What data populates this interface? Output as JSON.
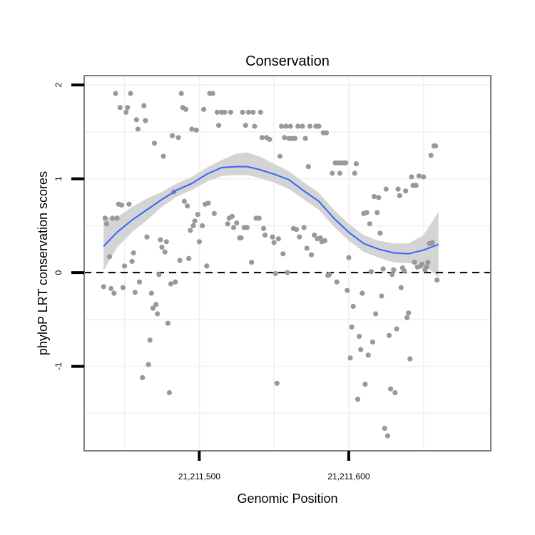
{
  "chart_data": {
    "type": "scatter",
    "title": "Conservation",
    "xlabel": "Genomic Position",
    "ylabel": "phyloP LRT conservation scores",
    "xlim": [
      21211423,
      21211695
    ],
    "ylim": [
      -1.9,
      2.1
    ],
    "x_ticks": [
      {
        "value": 21211500,
        "label": "21,211,500"
      },
      {
        "value": 21211600,
        "label": "21,211,600"
      }
    ],
    "y_ticks": [
      {
        "value": -1,
        "label": "-1"
      },
      {
        "value": 0,
        "label": "0"
      },
      {
        "value": 1,
        "label": "1"
      },
      {
        "value": 2,
        "label": "2"
      }
    ],
    "reference_line": {
      "y": 0,
      "style": "dashed"
    },
    "points": [
      [
        21211436,
        -0.15
      ],
      [
        21211437,
        0.58
      ],
      [
        21211438,
        0.52
      ],
      [
        21211440,
        0.17
      ],
      [
        21211441,
        -0.17
      ],
      [
        21211442,
        0.58
      ],
      [
        21211443,
        -0.22
      ],
      [
        21211444,
        1.91
      ],
      [
        21211445,
        0.58
      ],
      [
        21211446,
        0.73
      ],
      [
        21211447,
        1.76
      ],
      [
        21211448,
        0.72
      ],
      [
        21211449,
        -0.16
      ],
      [
        21211450,
        0.07
      ],
      [
        21211451,
        1.71
      ],
      [
        21211452,
        1.76
      ],
      [
        21211453,
        0.73
      ],
      [
        21211454,
        1.91
      ],
      [
        21211455,
        0.12
      ],
      [
        21211456,
        0.21
      ],
      [
        21211457,
        -0.21
      ],
      [
        21211458,
        1.63
      ],
      [
        21211459,
        1.53
      ],
      [
        21211460,
        -0.1
      ],
      [
        21211462,
        -1.12
      ],
      [
        21211463,
        1.78
      ],
      [
        21211464,
        1.62
      ],
      [
        21211465,
        0.38
      ],
      [
        21211466,
        -0.98
      ],
      [
        21211467,
        -0.72
      ],
      [
        21211468,
        -0.22
      ],
      [
        21211469,
        -0.38
      ],
      [
        21211470,
        1.38
      ],
      [
        21211471,
        -0.34
      ],
      [
        21211472,
        -0.44
      ],
      [
        21211473,
        -0.02
      ],
      [
        21211474,
        0.35
      ],
      [
        21211475,
        0.27
      ],
      [
        21211476,
        1.24
      ],
      [
        21211477,
        0.22
      ],
      [
        21211478,
        0.33
      ],
      [
        21211479,
        -0.54
      ],
      [
        21211480,
        -1.28
      ],
      [
        21211481,
        -0.12
      ],
      [
        21211482,
        1.46
      ],
      [
        21211483,
        0.86
      ],
      [
        21211484,
        -0.1
      ],
      [
        21211486,
        1.44
      ],
      [
        21211487,
        0.13
      ],
      [
        21211488,
        1.91
      ],
      [
        21211489,
        1.76
      ],
      [
        21211490,
        0.76
      ],
      [
        21211491,
        1.74
      ],
      [
        21211492,
        0.71
      ],
      [
        21211493,
        0.15
      ],
      [
        21211494,
        0.45
      ],
      [
        21211495,
        1.53
      ],
      [
        21211496,
        0.5
      ],
      [
        21211497,
        0.55
      ],
      [
        21211498,
        1.52
      ],
      [
        21211499,
        0.62
      ],
      [
        21211500,
        0.33
      ],
      [
        21211502,
        0.5
      ],
      [
        21211503,
        1.74
      ],
      [
        21211504,
        0.73
      ],
      [
        21211505,
        0.07
      ],
      [
        21211506,
        0.74
      ],
      [
        21211507,
        1.91
      ],
      [
        21211509,
        1.91
      ],
      [
        21211510,
        0.63
      ],
      [
        21211512,
        1.71
      ],
      [
        21211513,
        1.57
      ],
      [
        21211515,
        1.71
      ],
      [
        21211517,
        1.71
      ],
      [
        21211519,
        0.52
      ],
      [
        21211520,
        0.58
      ],
      [
        21211521,
        1.71
      ],
      [
        21211522,
        0.6
      ],
      [
        21211523,
        0.48
      ],
      [
        21211525,
        0.53
      ],
      [
        21211527,
        0.37
      ],
      [
        21211528,
        0.37
      ],
      [
        21211529,
        1.71
      ],
      [
        21211530,
        0.48
      ],
      [
        21211531,
        1.57
      ],
      [
        21211532,
        0.48
      ],
      [
        21211533,
        1.71
      ],
      [
        21211535,
        0.11
      ],
      [
        21211536,
        1.71
      ],
      [
        21211537,
        1.56
      ],
      [
        21211538,
        0.58
      ],
      [
        21211540,
        0.58
      ],
      [
        21211541,
        1.71
      ],
      [
        21211542,
        1.44
      ],
      [
        21211543,
        0.47
      ],
      [
        21211544,
        0.4
      ],
      [
        21211545,
        1.44
      ],
      [
        21211547,
        1.42
      ],
      [
        21211549,
        0.38
      ],
      [
        21211550,
        0.32
      ],
      [
        21211551,
        -0.01
      ],
      [
        21211552,
        -1.18
      ],
      [
        21211553,
        0.36
      ],
      [
        21211554,
        1.24
      ],
      [
        21211555,
        1.56
      ],
      [
        21211556,
        0.2
      ],
      [
        21211557,
        1.44
      ],
      [
        21211558,
        1.56
      ],
      [
        21211559,
        0.0
      ],
      [
        21211560,
        1.43
      ],
      [
        21211561,
        1.56
      ],
      [
        21211562,
        1.43
      ],
      [
        21211563,
        0.47
      ],
      [
        21211564,
        1.43
      ],
      [
        21211565,
        0.46
      ],
      [
        21211566,
        1.56
      ],
      [
        21211567,
        0.38
      ],
      [
        21211569,
        1.56
      ],
      [
        21211570,
        0.48
      ],
      [
        21211571,
        1.43
      ],
      [
        21211572,
        0.26
      ],
      [
        21211573,
        1.13
      ],
      [
        21211574,
        1.56
      ],
      [
        21211575,
        0.19
      ],
      [
        21211577,
        0.4
      ],
      [
        21211578,
        1.56
      ],
      [
        21211579,
        0.36
      ],
      [
        21211580,
        1.56
      ],
      [
        21211581,
        0.37
      ],
      [
        21211582,
        0.33
      ],
      [
        21211583,
        1.49
      ],
      [
        21211584,
        0.34
      ],
      [
        21211585,
        1.49
      ],
      [
        21211586,
        -0.03
      ],
      [
        21211587,
        -0.02
      ],
      [
        21211589,
        1.06
      ],
      [
        21211591,
        1.17
      ],
      [
        21211592,
        -0.1
      ],
      [
        21211593,
        1.17
      ],
      [
        21211594,
        1.06
      ],
      [
        21211595,
        1.17
      ],
      [
        21211597,
        1.17
      ],
      [
        21211598,
        1.17
      ],
      [
        21211599,
        -0.19
      ],
      [
        21211600,
        0.16
      ],
      [
        21211601,
        -0.91
      ],
      [
        21211602,
        -0.58
      ],
      [
        21211603,
        -0.36
      ],
      [
        21211604,
        1.06
      ],
      [
        21211605,
        1.16
      ],
      [
        21211606,
        -1.35
      ],
      [
        21211607,
        -0.68
      ],
      [
        21211608,
        -0.82
      ],
      [
        21211609,
        -0.22
      ],
      [
        21211610,
        0.63
      ],
      [
        21211611,
        -1.19
      ],
      [
        21211612,
        0.64
      ],
      [
        21211613,
        -0.88
      ],
      [
        21211614,
        0.52
      ],
      [
        21211615,
        0.01
      ],
      [
        21211616,
        -0.74
      ],
      [
        21211617,
        0.81
      ],
      [
        21211618,
        -0.44
      ],
      [
        21211619,
        0.64
      ],
      [
        21211620,
        0.8
      ],
      [
        21211621,
        0.42
      ],
      [
        21211622,
        -0.25
      ],
      [
        21211623,
        0.04
      ],
      [
        21211624,
        -1.66
      ],
      [
        21211625,
        0.89
      ],
      [
        21211626,
        -1.74
      ],
      [
        21211627,
        -0.67
      ],
      [
        21211628,
        -1.24
      ],
      [
        21211629,
        -0.02
      ],
      [
        21211630,
        0.03
      ],
      [
        21211631,
        -1.28
      ],
      [
        21211632,
        -0.6
      ],
      [
        21211633,
        0.89
      ],
      [
        21211634,
        0.82
      ],
      [
        21211635,
        -0.16
      ],
      [
        21211636,
        0.05
      ],
      [
        21211637,
        0.02
      ],
      [
        21211638,
        0.87
      ],
      [
        21211639,
        -0.48
      ],
      [
        21211640,
        -0.43
      ],
      [
        21211641,
        -0.92
      ],
      [
        21211642,
        1.02
      ],
      [
        21211643,
        0.93
      ],
      [
        21211644,
        0.11
      ],
      [
        21211645,
        0.93
      ],
      [
        21211646,
        0.06
      ],
      [
        21211647,
        1.03
      ],
      [
        21211648,
        0.07
      ],
      [
        21211649,
        0.09
      ],
      [
        21211650,
        1.02
      ],
      [
        21211651,
        0.03
      ],
      [
        21211652,
        0.06
      ],
      [
        21211653,
        0.11
      ],
      [
        21211654,
        0.31
      ],
      [
        21211655,
        1.25
      ],
      [
        21211656,
        0.32
      ],
      [
        21211657,
        1.35
      ],
      [
        21211658,
        1.35
      ],
      [
        21211659,
        -0.08
      ]
    ],
    "smooth": {
      "method": "loess",
      "x": [
        21211436,
        21211445,
        21211455,
        21211465,
        21211475,
        21211485,
        21211495,
        21211505,
        21211515,
        21211525,
        21211532,
        21211540,
        21211550,
        21211560,
        21211570,
        21211580,
        21211590,
        21211600,
        21211610,
        21211620,
        21211630,
        21211640,
        21211650,
        21211660
      ],
      "y": [
        0.28,
        0.43,
        0.56,
        0.67,
        0.78,
        0.88,
        0.95,
        1.05,
        1.12,
        1.13,
        1.13,
        1.1,
        1.05,
        0.99,
        0.87,
        0.76,
        0.58,
        0.43,
        0.31,
        0.25,
        0.21,
        0.2,
        0.24,
        0.3
      ],
      "lower": [
        0.02,
        0.27,
        0.43,
        0.56,
        0.7,
        0.81,
        0.88,
        0.97,
        1.03,
        1.04,
        1.04,
        1.01,
        0.96,
        0.89,
        0.78,
        0.67,
        0.49,
        0.34,
        0.22,
        0.16,
        0.11,
        0.1,
        0.09,
        -0.05
      ],
      "upper": [
        0.59,
        0.59,
        0.7,
        0.79,
        0.86,
        0.95,
        1.02,
        1.12,
        1.2,
        1.27,
        1.28,
        1.24,
        1.16,
        1.08,
        0.96,
        0.85,
        0.67,
        0.52,
        0.4,
        0.34,
        0.31,
        0.31,
        0.4,
        0.65
      ]
    },
    "colors": {
      "points": "#999999",
      "smooth_line": "#3366ff",
      "confidence_band": "#d4d4d4",
      "panel_border": "#7f7f7f",
      "grid": "#f2f2f2",
      "reference_line": "#000000"
    }
  }
}
